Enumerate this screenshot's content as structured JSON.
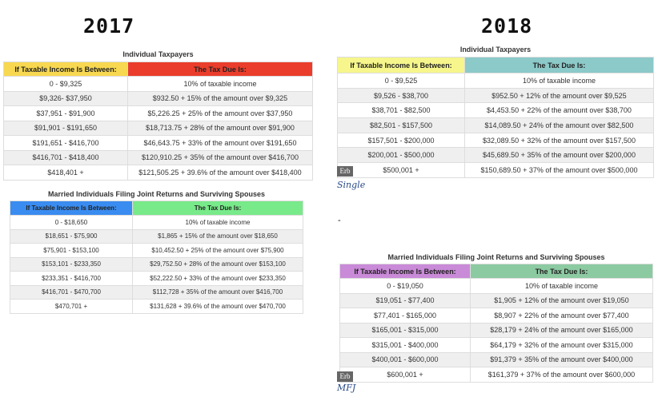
{
  "y2017": {
    "year": "2017",
    "individual": {
      "caption": "Individual Taxpayers",
      "col1": "If Taxable Income Is Between:",
      "col2": "The Tax Due Is:",
      "header_colors": [
        "#f7d850",
        "#ea3d2b"
      ],
      "rows": [
        [
          "0 - $9,325",
          "10% of taxable income"
        ],
        [
          "$9,326- $37,950",
          "$932.50 + 15% of the amount over $9,325"
        ],
        [
          "$37,951 - $91,900",
          "$5,226.25 + 25% of the amount over $37,950"
        ],
        [
          "$91,901 - $191,650",
          "$18,713.75 + 28% of the amount over $91,900"
        ],
        [
          "$191,651 - $416,700",
          "$46,643.75 + 33% of the amount over $191,650"
        ],
        [
          "$416,701 - $418,400",
          "$120,910.25 + 35% of the amount over $416,700"
        ],
        [
          "$418,401 +",
          "$121,505.25 + 39.6%  of the amount over $418,400"
        ]
      ]
    },
    "married": {
      "caption": "Married Individuals Filing Joint Returns and Surviving Spouses",
      "col1": "If Taxable Income Is Between:",
      "col2": "The Tax Due Is:",
      "header_colors": [
        "#3a8cf0",
        "#78ea8a"
      ],
      "rows": [
        [
          "0 - $18,650",
          "10% of taxable income"
        ],
        [
          "$18,651 - $75,900",
          "$1,865 + 15% of the amount over $18,650"
        ],
        [
          "$75,901 - $153,100",
          "$10,452.50 + 25% of the amount over $75,900"
        ],
        [
          "$153,101 - $233,350",
          "$29,752.50 + 28% of the amount over $153,100"
        ],
        [
          "$233,351 - $416,700",
          "$52,222.50 + 33% of the amount over $233,350"
        ],
        [
          "$416,701 - $470,700",
          "$112,728 + 35% of the amount over $416,700"
        ],
        [
          "$470,701 +",
          "$131,628 + 39.6%  of the amount over $470,700"
        ]
      ]
    }
  },
  "y2018": {
    "year": "2018",
    "individual": {
      "caption": "Individual Taxpayers",
      "col1": "If Taxable Income Is Between:",
      "col2": "The Tax Due Is:",
      "header_colors": [
        "#f6f68c",
        "#8cc9c9"
      ],
      "rows": [
        [
          "0 - $9,525",
          "10% of taxable income"
        ],
        [
          "$9,526 - $38,700",
          "$952.50 + 12% of the amount over $9,525"
        ],
        [
          "$38,701 - $82,500",
          "$4,453.50 + 22% of the amount over $38,700"
        ],
        [
          "$82,501 - $157,500",
          "$14,089.50 + 24% of the amount over $82,500"
        ],
        [
          "$157,501 - $200,000",
          "$32,089.50 + 32% of the amount over $157,500"
        ],
        [
          "$200,001 - $500,000",
          "$45,689.50 + 35% of the amount over $200,000"
        ],
        [
          "$500,001 +",
          "$150,689.50 + 37% of the amount over $500,000"
        ]
      ]
    },
    "married": {
      "caption": "Married Individuals Filing Joint Returns and Surviving Spouses",
      "col1": "If Taxable Income Is Between:",
      "col2": "The Tax Due Is:",
      "header_colors": [
        "#c98ad8",
        "#8ccaa2"
      ],
      "rows": [
        [
          "0 - $19,050",
          "10% of taxable income"
        ],
        [
          "$19,051 - $77,400",
          "$1,905 + 12% of the amount over $19,050"
        ],
        [
          "$77,401 - $165,000",
          "$8,907 + 22% of the amount over $77,400"
        ],
        [
          "$165,001 - $315,000",
          "$28,179 + 24% of the amount over $165,000"
        ],
        [
          "$315,001 - $400,000",
          "$64,179 + 32% of the amount over $315,000"
        ],
        [
          "$400,001 - $600,000",
          "$91,379 + 35% of the amount over $400,000"
        ],
        [
          "$600,001 +",
          "$161,379 + 37% of the amount over $600,000"
        ]
      ]
    },
    "badge": "Erb",
    "single_label": "Single",
    "dash": "-",
    "mfj_label": "MFJ"
  }
}
